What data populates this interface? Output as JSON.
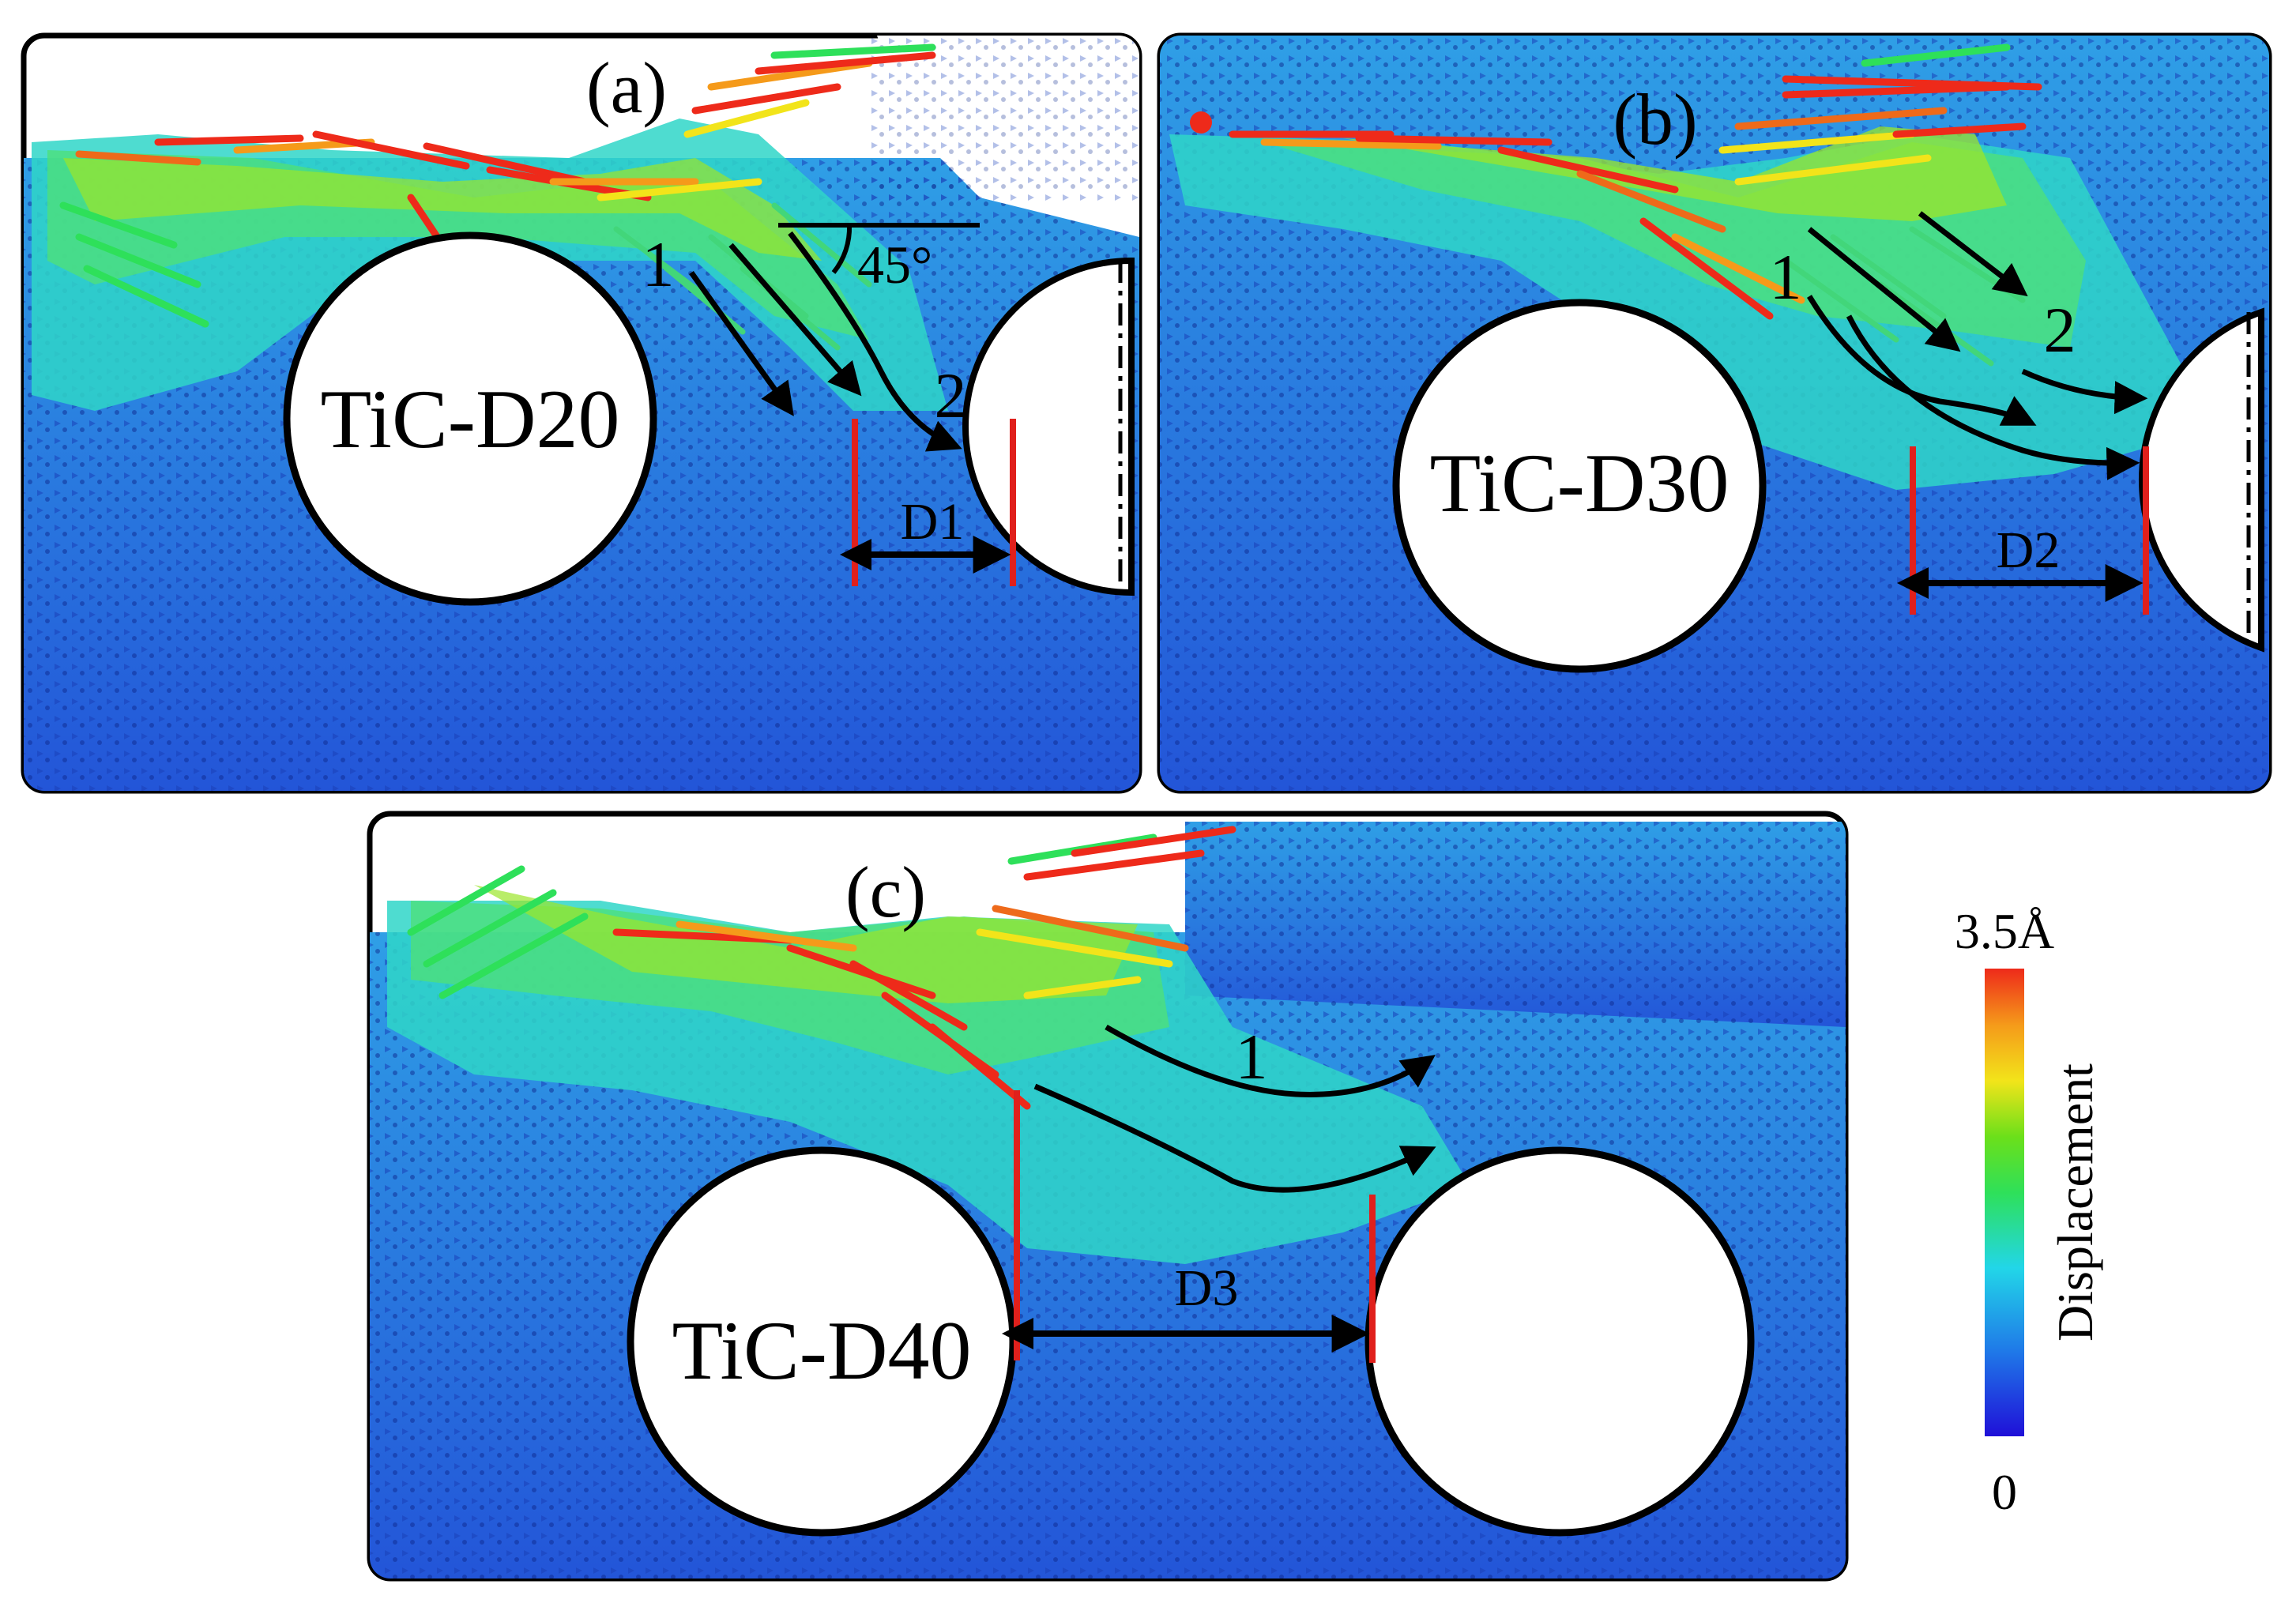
{
  "figure": {
    "panels": [
      {
        "id": "a",
        "label": "(a)",
        "particle_label": "TiC-D20",
        "flow_paths": [
          "1",
          "2"
        ],
        "distance_label": "D1",
        "angle_label": "45°"
      },
      {
        "id": "b",
        "label": "(b)",
        "particle_label": "TiC-D30",
        "flow_paths": [
          "1",
          "2"
        ],
        "distance_label": "D2"
      },
      {
        "id": "c",
        "label": "(c)",
        "particle_label": "TiC-D40",
        "flow_paths": [
          "1"
        ],
        "distance_label": "D3"
      }
    ],
    "colorbar": {
      "title": "Displacement",
      "max_label": "3.5Å",
      "min_label": "0",
      "colors": [
        "#1f10d8",
        "#1f78e8",
        "#22d6e8",
        "#2ee05a",
        "#6be01a",
        "#f2e41a",
        "#f59a1a",
        "#ee2a1a"
      ]
    },
    "colors": {
      "particle_fill": "#ffffff",
      "particle_outline": "#000000",
      "distance_marker": "#e0201c",
      "arrow": "#000000",
      "atom_background": "#2a6de0"
    }
  }
}
